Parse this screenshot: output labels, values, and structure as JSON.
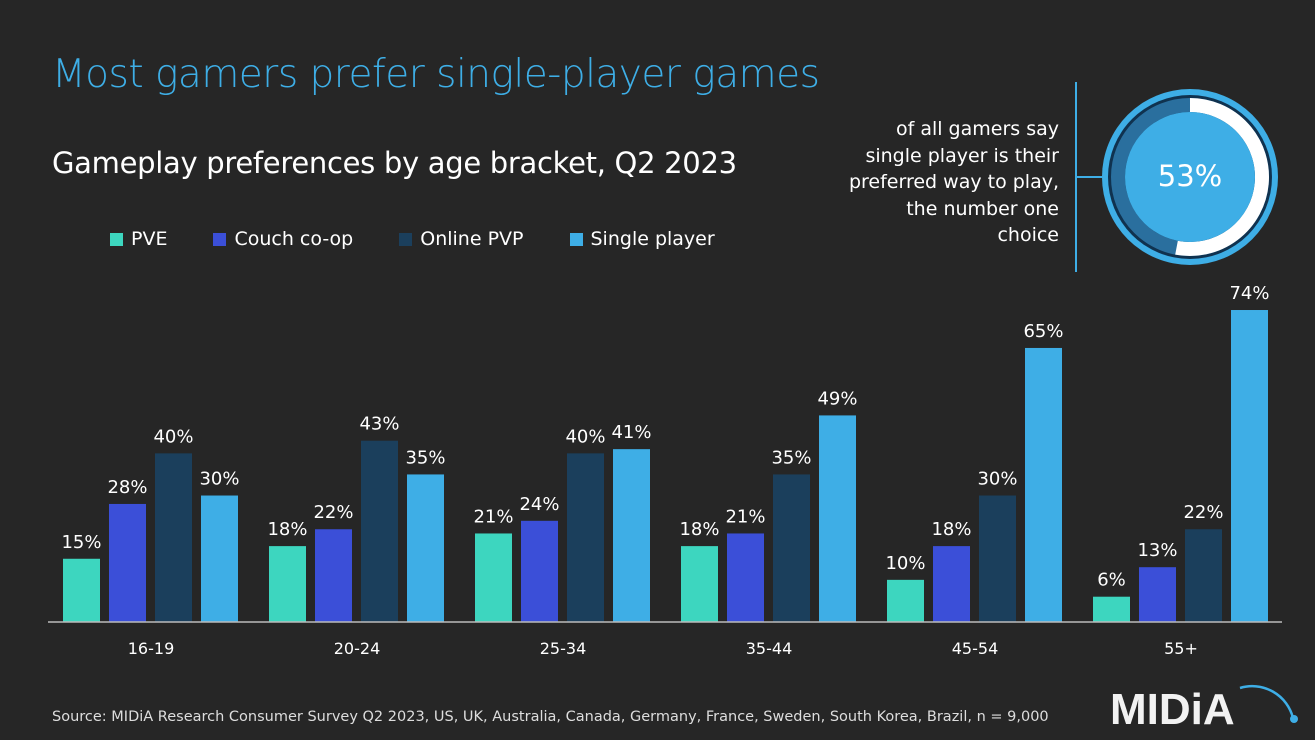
{
  "title": "Most gamers prefer single-player games",
  "subtitle": "Gameplay preferences by age bracket, Q2 2023",
  "callout": {
    "lines": [
      "of all gamers say",
      "single player is their",
      "preferred way to play,",
      "the number one",
      "choice"
    ],
    "value": "53%",
    "fraction": 0.53
  },
  "source": "Source: MIDiA Research Consumer Survey Q2 2023, US, UK, Australia, Canada, Germany, France, Sweden, South Korea, Brazil, n = 9,000",
  "logo": "MIDiA",
  "chart_data": {
    "type": "bar",
    "title": "Gameplay preferences by age bracket, Q2 2023",
    "categories": [
      "16-19",
      "20-24",
      "25-34",
      "35-44",
      "45-54",
      "55+"
    ],
    "series": [
      {
        "name": "PVE",
        "color": "#3dd6bf",
        "values": [
          15,
          18,
          21,
          18,
          10,
          6
        ]
      },
      {
        "name": "Couch co-op",
        "color": "#3b4fd8",
        "values": [
          28,
          22,
          24,
          21,
          18,
          13
        ]
      },
      {
        "name": "Online PVP",
        "color": "#1b3f5c",
        "values": [
          40,
          43,
          40,
          35,
          30,
          22
        ]
      },
      {
        "name": "Single player",
        "color": "#3eaee6",
        "values": [
          30,
          35,
          41,
          49,
          65,
          74
        ]
      }
    ],
    "value_suffix": "%",
    "legend": "top-left",
    "grid": false
  }
}
